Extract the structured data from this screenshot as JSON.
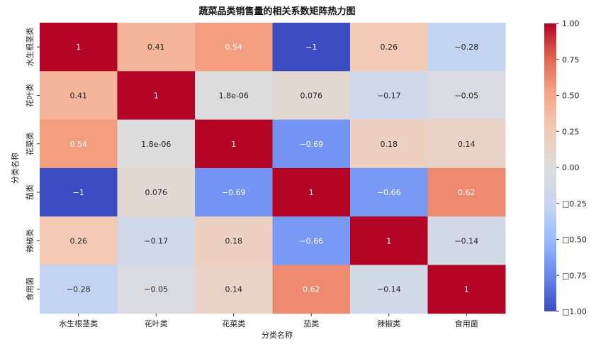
{
  "chart_data": {
    "type": "heatmap",
    "title": "蔬菜品类销售量的相关系数矩阵热力图",
    "xlabel": "分类名称",
    "ylabel": "分类名称",
    "x_categories": [
      "水生根茎类",
      "花叶类",
      "花菜类",
      "茄类",
      "辣椒类",
      "食用菌"
    ],
    "y_categories": [
      "水生根茎类",
      "花叶类",
      "花菜类",
      "茄类",
      "辣椒类",
      "食用菌"
    ],
    "values": [
      [
        1,
        0.41,
        0.54,
        -1,
        0.26,
        -0.28
      ],
      [
        0.41,
        1,
        1.8e-06,
        0.076,
        -0.17,
        -0.05
      ],
      [
        0.54,
        1.8e-06,
        1,
        -0.69,
        0.18,
        0.14
      ],
      [
        -1,
        0.076,
        -0.69,
        1,
        -0.66,
        0.62
      ],
      [
        0.26,
        -0.17,
        0.18,
        -0.66,
        1,
        -0.14
      ],
      [
        -0.28,
        -0.05,
        0.14,
        0.62,
        -0.14,
        1
      ]
    ],
    "cell_labels": [
      [
        "1",
        "0.41",
        "0.54",
        "−1",
        "0.26",
        "−0.28"
      ],
      [
        "0.41",
        "1",
        "1.8e-06",
        "0.076",
        "−0.17",
        "−0.05"
      ],
      [
        "0.54",
        "1.8e-06",
        "1",
        "−0.69",
        "0.18",
        "0.14"
      ],
      [
        "−1",
        "0.076",
        "−0.69",
        "1",
        "−0.66",
        "0.62"
      ],
      [
        "0.26",
        "−0.17",
        "0.18",
        "−0.66",
        "1",
        "−0.14"
      ],
      [
        "−0.28",
        "−0.05",
        "0.14",
        "0.62",
        "−0.14",
        "1"
      ]
    ],
    "colormap": "coolwarm",
    "colorbar_range": [
      -1,
      1
    ],
    "colorbar_ticks": [
      1.0,
      0.75,
      0.5,
      0.25,
      0.0,
      -0.25,
      -0.5,
      -0.75,
      -1.0
    ],
    "colorbar_tick_labels": [
      "1.00",
      "0.75",
      "0.50",
      "0.25",
      "0.00",
      "□0.25",
      "□0.50",
      "□0.75",
      "□1.00"
    ],
    "colors": {
      "low": "#3b4cc0",
      "mid": "#dddddd",
      "high": "#b40426"
    }
  }
}
